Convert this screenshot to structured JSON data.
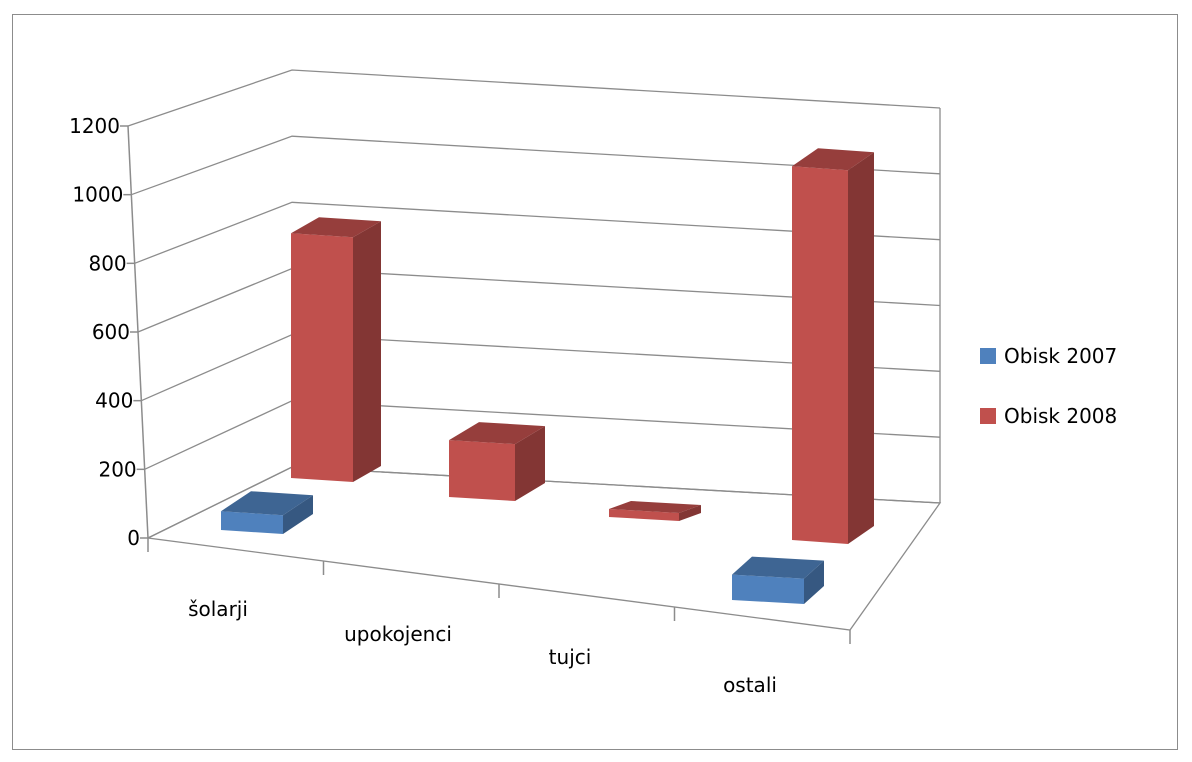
{
  "chart_data": {
    "type": "bar",
    "style": "3d-clustered-column",
    "categories": [
      "šolarji",
      "upokojenci",
      "tujci",
      "ostali"
    ],
    "series": [
      {
        "name": "Obisk 2007",
        "values": [
          55,
          0,
          0,
          75
        ],
        "color": "#4f81bd"
      },
      {
        "name": "Obisk 2008",
        "values": [
          720,
          170,
          20,
          1150
        ],
        "color": "#c0504d"
      }
    ],
    "yticks": [
      "0",
      "200",
      "400",
      "600",
      "800",
      "1000",
      "1200"
    ],
    "ylim": [
      0,
      1200
    ],
    "grid": true,
    "legend_position": "right"
  }
}
